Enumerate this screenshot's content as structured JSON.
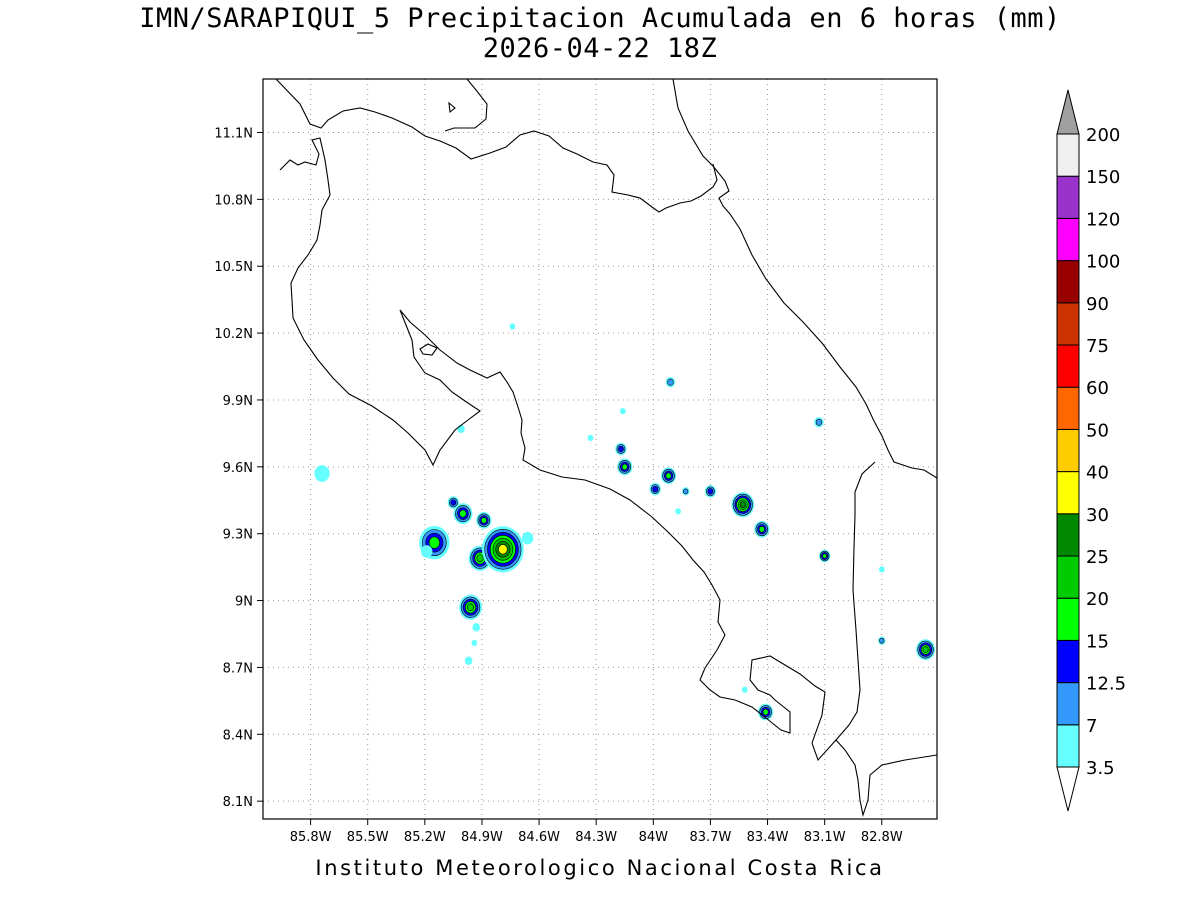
{
  "header": {
    "title_line1": "IMN/SARAPIQUI_5 Precipitacion Acumulada en 6 horas (mm)",
    "title_line2": "2026-04-22 18Z"
  },
  "footer": {
    "text": "Instituto Meteorologico Nacional Costa Rica"
  },
  "map": {
    "lon_range": [
      -86.05,
      -82.51
    ],
    "lat_range": [
      8.02,
      11.34
    ],
    "lon_ticks": [
      {
        "value": -85.8,
        "label": "85.8W"
      },
      {
        "value": -85.5,
        "label": "85.5W"
      },
      {
        "value": -85.2,
        "label": "85.2W"
      },
      {
        "value": -84.9,
        "label": "84.9W"
      },
      {
        "value": -84.6,
        "label": "84.6W"
      },
      {
        "value": -84.3,
        "label": "84.3W"
      },
      {
        "value": -84.0,
        "label": "84W"
      },
      {
        "value": -83.7,
        "label": "83.7W"
      },
      {
        "value": -83.4,
        "label": "83.4W"
      },
      {
        "value": -83.1,
        "label": "83.1W"
      },
      {
        "value": -82.8,
        "label": "82.8W"
      }
    ],
    "lat_ticks": [
      {
        "value": 11.1,
        "label": "11.1N"
      },
      {
        "value": 10.8,
        "label": "10.8N"
      },
      {
        "value": 10.5,
        "label": "10.5N"
      },
      {
        "value": 10.2,
        "label": "10.2N"
      },
      {
        "value": 9.9,
        "label": "9.9N"
      },
      {
        "value": 9.6,
        "label": "9.6N"
      },
      {
        "value": 9.3,
        "label": "9.3N"
      },
      {
        "value": 9.0,
        "label": "9N"
      },
      {
        "value": 8.7,
        "label": "8.7N"
      },
      {
        "value": 8.4,
        "label": "8.4N"
      },
      {
        "value": 8.1,
        "label": "8.1N"
      }
    ],
    "grid": "dotted",
    "precip_cells": [
      {
        "lon": -85.74,
        "lat": 9.57,
        "r": 0.04,
        "level": 1
      },
      {
        "lon": -85.15,
        "lat": 9.26,
        "r": 0.08,
        "level": 4
      },
      {
        "lon": -85.05,
        "lat": 9.44,
        "r": 0.03,
        "level": 3
      },
      {
        "lon": -85.0,
        "lat": 9.39,
        "r": 0.05,
        "level": 4
      },
      {
        "lon": -84.89,
        "lat": 9.36,
        "r": 0.04,
        "level": 4
      },
      {
        "lon": -84.91,
        "lat": 9.19,
        "r": 0.06,
        "level": 5
      },
      {
        "lon": -84.79,
        "lat": 9.23,
        "r": 0.11,
        "level": 7
      },
      {
        "lon": -84.96,
        "lat": 8.97,
        "r": 0.06,
        "level": 5
      },
      {
        "lon": -84.97,
        "lat": 8.73,
        "r": 0.02,
        "level": 1
      },
      {
        "lon": -85.01,
        "lat": 9.77,
        "r": 0.02,
        "level": 1
      },
      {
        "lon": -84.74,
        "lat": 10.23,
        "r": 0.015,
        "level": 1
      },
      {
        "lon": -84.15,
        "lat": 9.6,
        "r": 0.04,
        "level": 4
      },
      {
        "lon": -84.17,
        "lat": 9.68,
        "r": 0.03,
        "level": 3
      },
      {
        "lon": -83.92,
        "lat": 9.56,
        "r": 0.04,
        "level": 4
      },
      {
        "lon": -83.99,
        "lat": 9.5,
        "r": 0.03,
        "level": 3
      },
      {
        "lon": -83.7,
        "lat": 9.49,
        "r": 0.03,
        "level": 3
      },
      {
        "lon": -83.53,
        "lat": 9.43,
        "r": 0.06,
        "level": 6
      },
      {
        "lon": -83.43,
        "lat": 9.32,
        "r": 0.04,
        "level": 4
      },
      {
        "lon": -83.1,
        "lat": 9.2,
        "r": 0.03,
        "level": 4
      },
      {
        "lon": -83.41,
        "lat": 8.5,
        "r": 0.04,
        "level": 4
      },
      {
        "lon": -82.57,
        "lat": 8.78,
        "r": 0.05,
        "level": 5
      },
      {
        "lon": -83.91,
        "lat": 9.98,
        "r": 0.025,
        "level": 2
      },
      {
        "lon": -83.13,
        "lat": 9.8,
        "r": 0.025,
        "level": 2
      },
      {
        "lon": -84.33,
        "lat": 9.73,
        "r": 0.015,
        "level": 1
      },
      {
        "lon": -84.16,
        "lat": 9.85,
        "r": 0.015,
        "level": 1
      },
      {
        "lon": -83.83,
        "lat": 9.49,
        "r": 0.02,
        "level": 2
      },
      {
        "lon": -83.87,
        "lat": 9.4,
        "r": 0.015,
        "level": 1
      },
      {
        "lon": -82.8,
        "lat": 8.82,
        "r": 0.02,
        "level": 2
      },
      {
        "lon": -82.8,
        "lat": 9.14,
        "r": 0.015,
        "level": 1
      },
      {
        "lon": -83.52,
        "lat": 8.6,
        "r": 0.015,
        "level": 1
      },
      {
        "lon": -85.19,
        "lat": 9.22,
        "r": 0.03,
        "level": 1
      },
      {
        "lon": -84.93,
        "lat": 8.88,
        "r": 0.02,
        "level": 1
      },
      {
        "lon": -84.94,
        "lat": 8.81,
        "r": 0.015,
        "level": 1
      },
      {
        "lon": -84.66,
        "lat": 9.28,
        "r": 0.03,
        "level": 1
      }
    ]
  },
  "colorbar": {
    "levels": [
      "3.5",
      "7",
      "12.5",
      "15",
      "20",
      "25",
      "30",
      "40",
      "50",
      "60",
      "75",
      "90",
      "100",
      "120",
      "150",
      "200"
    ],
    "colors": [
      "#66ffff",
      "#3399ff",
      "#0000ff",
      "#00ff00",
      "#00cc00",
      "#008800",
      "#ffff00",
      "#ffcc00",
      "#ff6600",
      "#ff0000",
      "#cc3300",
      "#990000",
      "#ff00ff",
      "#9933cc",
      "#f0f0f0",
      "#a0a0a0"
    ]
  }
}
